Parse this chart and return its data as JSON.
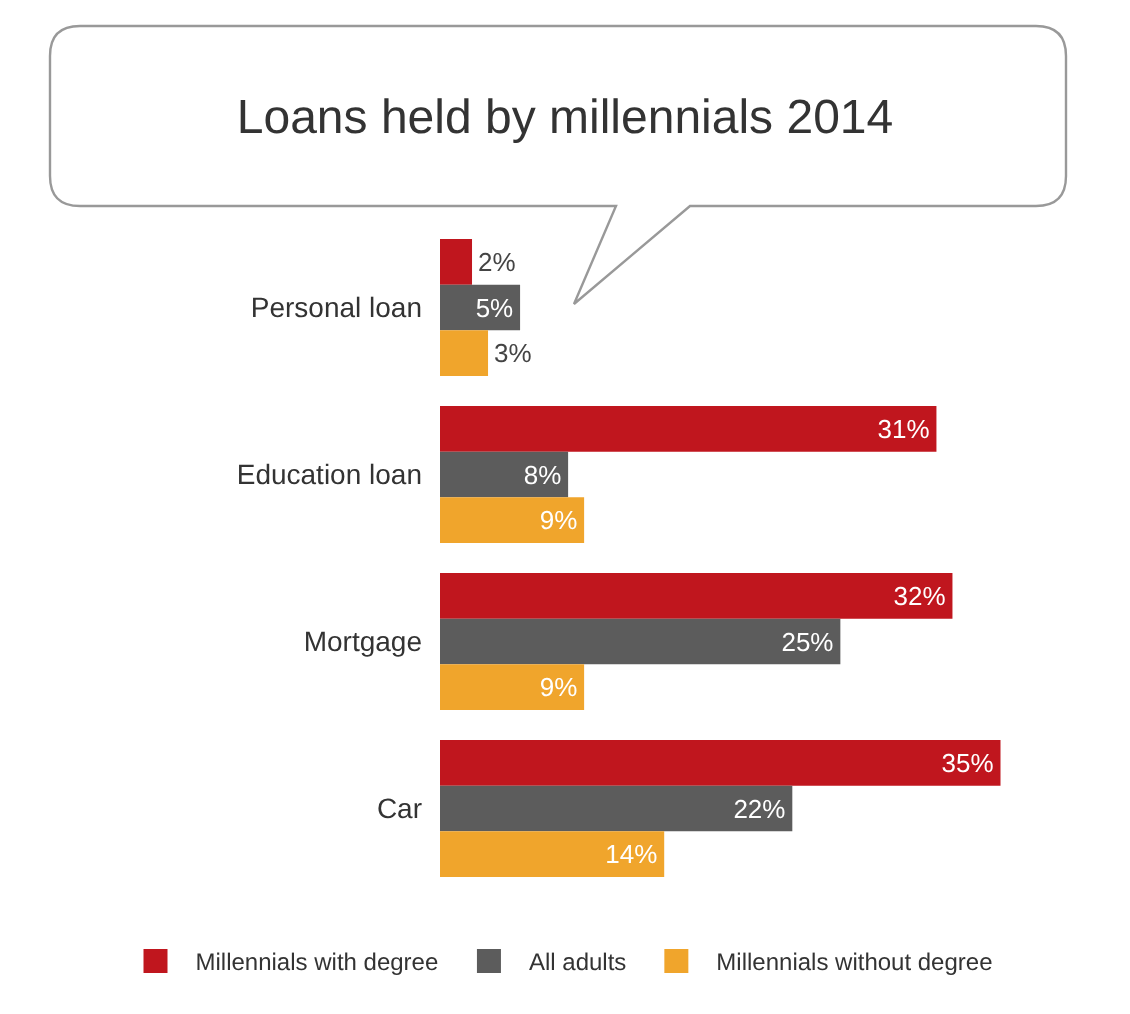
{
  "chart_data": {
    "type": "bar",
    "orientation": "horizontal",
    "title": "Loans held by millennials 2014",
    "categories": [
      "Personal loan",
      "Education loan",
      "Mortgage",
      "Car"
    ],
    "series": [
      {
        "name": "Millennials with degree",
        "color": "#c0161e",
        "values": [
          2,
          31,
          32,
          35
        ],
        "value_labels": [
          "2%",
          "31%",
          "32%",
          "35%"
        ]
      },
      {
        "name": "All adults",
        "color": "#5c5c5c",
        "values": [
          5,
          8,
          25,
          22
        ],
        "value_labels": [
          "5%",
          "8%",
          "25%",
          "22%"
        ]
      },
      {
        "name": "Millennials without degree",
        "color": "#f0a52c",
        "values": [
          3,
          9,
          9,
          14
        ],
        "value_labels": [
          "3%",
          "9%",
          "9%",
          "14%"
        ]
      }
    ],
    "legend": "bottom",
    "grid": false
  }
}
